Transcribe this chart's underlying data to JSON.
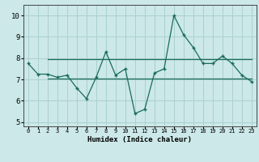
{
  "x": [
    0,
    1,
    2,
    3,
    4,
    5,
    6,
    7,
    8,
    9,
    10,
    11,
    12,
    13,
    14,
    15,
    16,
    17,
    18,
    19,
    20,
    21,
    22,
    23
  ],
  "y_zigzag": [
    7.75,
    7.25,
    7.25,
    7.1,
    7.2,
    6.6,
    6.1,
    7.1,
    8.3,
    7.2,
    7.5,
    5.4,
    5.6,
    7.3,
    7.5,
    10.0,
    9.1,
    8.5,
    7.75,
    7.75,
    8.1,
    7.75,
    7.2,
    6.9
  ],
  "y_upper_flat": [
    7.95,
    7.95,
    7.95,
    7.95,
    7.95,
    7.95,
    7.95,
    7.95,
    7.95,
    7.95,
    7.95,
    7.95,
    7.95,
    7.95,
    7.95,
    7.95,
    7.95,
    7.95,
    7.95,
    7.95,
    7.95,
    7.95,
    7.95,
    7.95
  ],
  "y_lower_flat": [
    7.05,
    7.05,
    7.05,
    7.05,
    7.05,
    7.05,
    7.05,
    7.05,
    7.05,
    7.05,
    7.05,
    7.05,
    7.05,
    7.05,
    7.05,
    7.05,
    7.05,
    7.05,
    7.05,
    7.05,
    7.05,
    7.05,
    7.05,
    7.05
  ],
  "x_upper_start": 2,
  "x_lower_start": 2,
  "line_color": "#1a6b5a",
  "bg_color": "#cce8e8",
  "grid_color": "#aad0d0",
  "xlabel": "Humidex (Indice chaleur)",
  "ylim": [
    4.8,
    10.5
  ],
  "xlim": [
    -0.5,
    23.5
  ],
  "yticks": [
    5,
    6,
    7,
    8,
    9,
    10
  ],
  "xtick_labels": [
    "0",
    "1",
    "2",
    "3",
    "4",
    "5",
    "6",
    "7",
    "8",
    "9",
    "10",
    "11",
    "12",
    "13",
    "14",
    "15",
    "16",
    "17",
    "18",
    "19",
    "20",
    "21",
    "22",
    "23"
  ]
}
